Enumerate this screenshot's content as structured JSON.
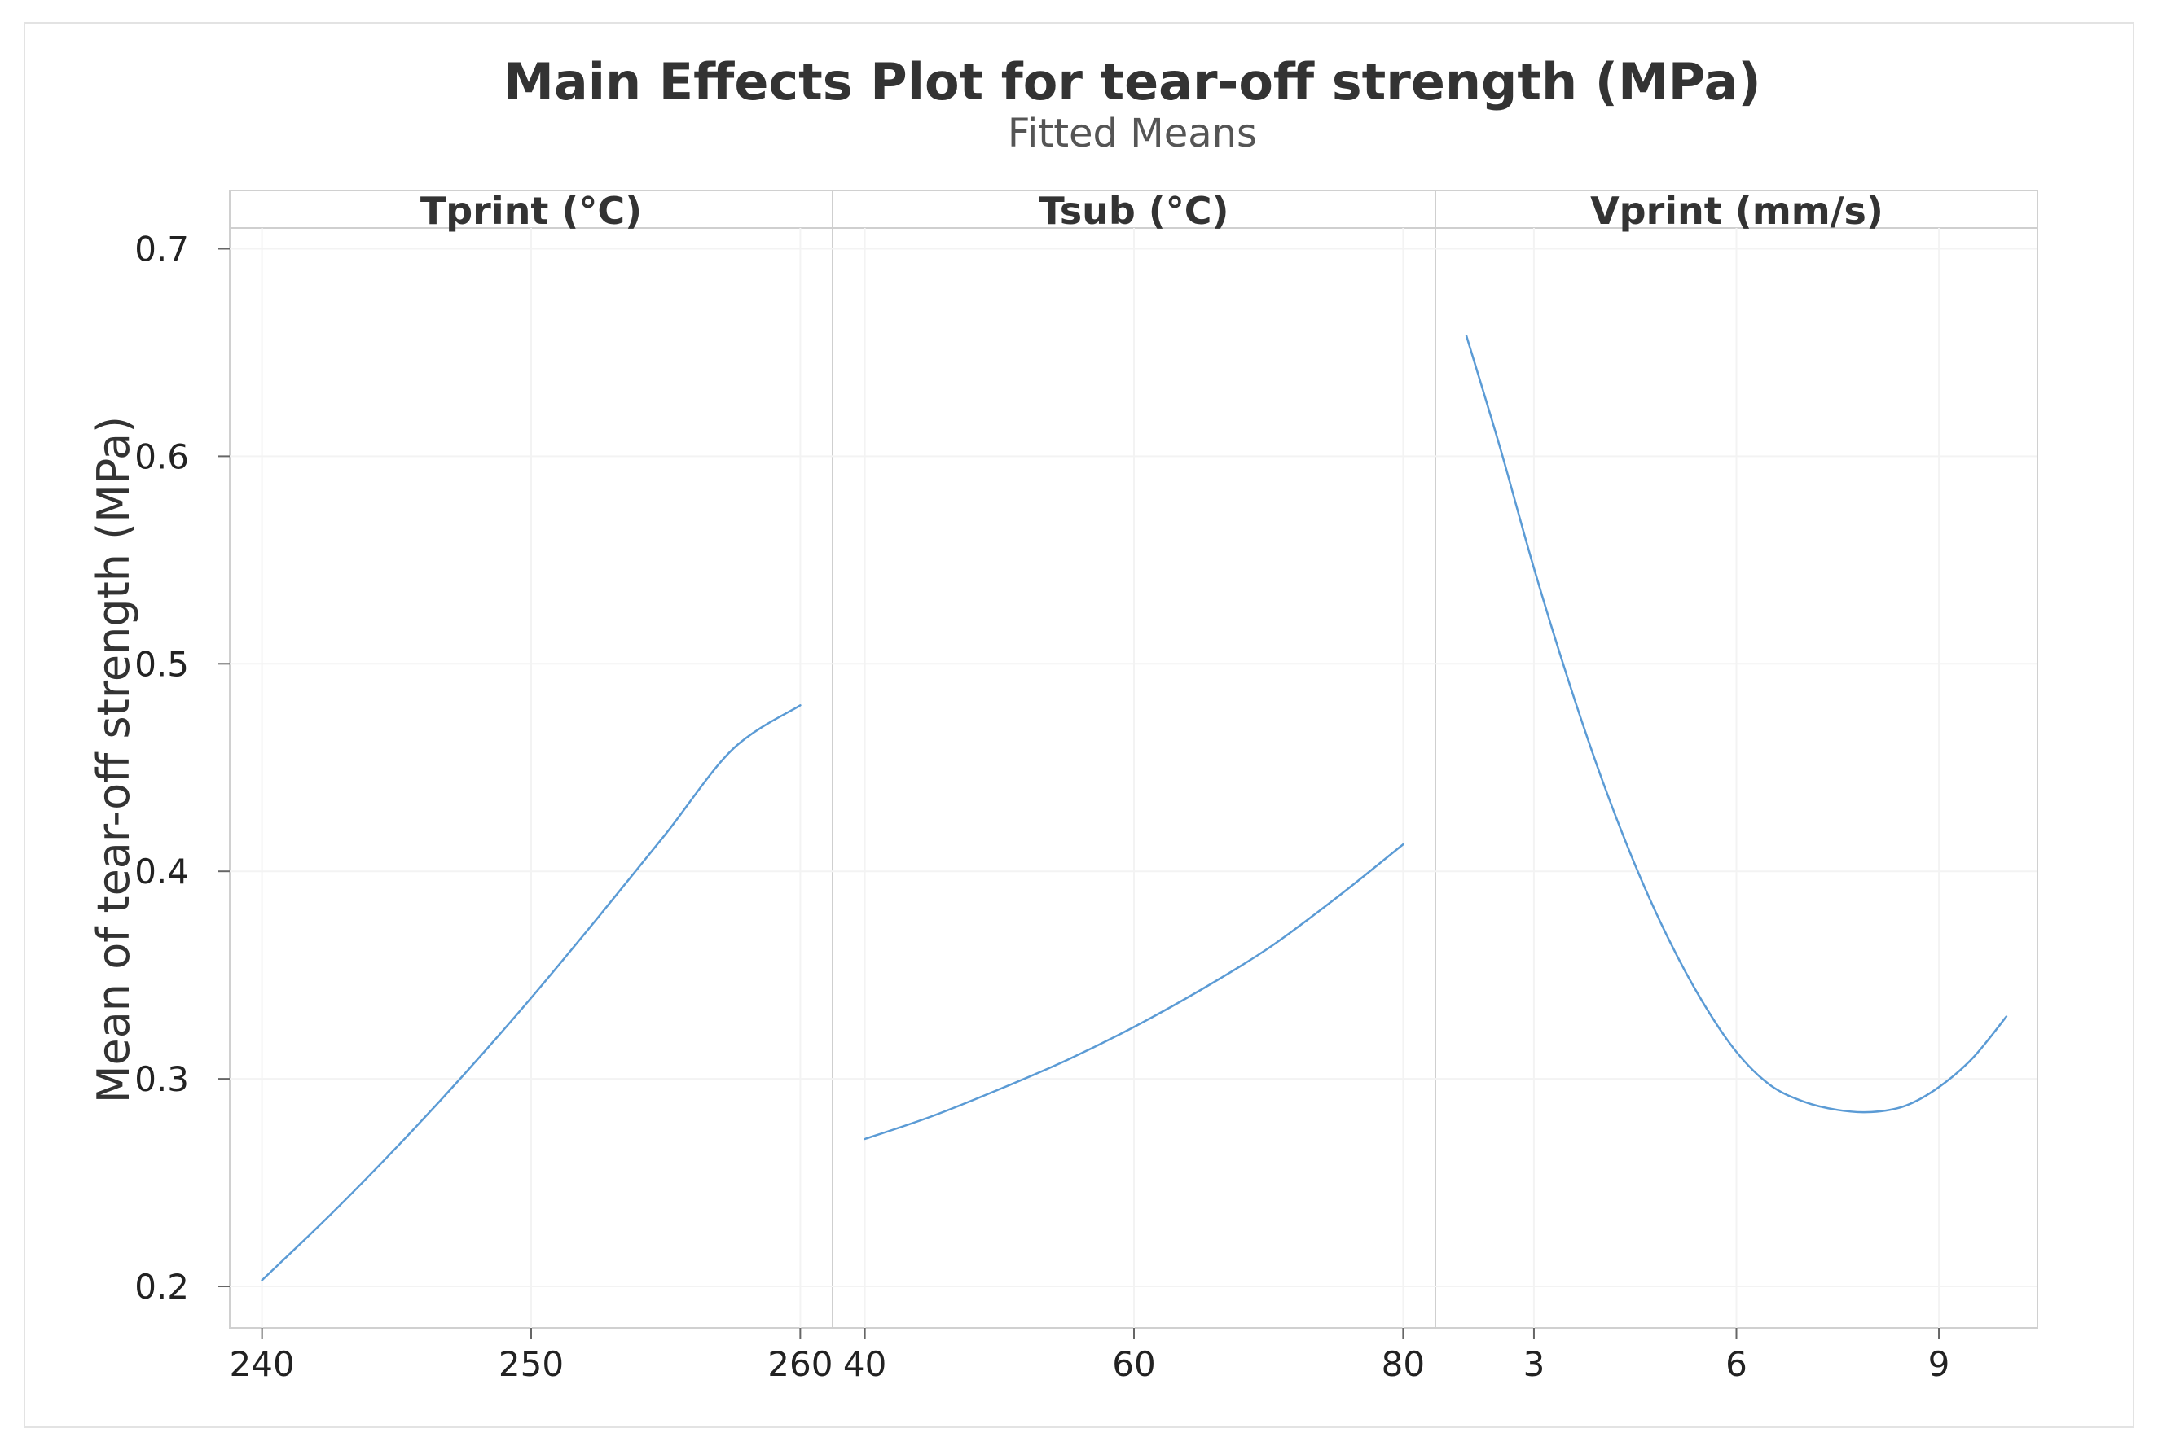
{
  "chart_data": {
    "type": "line",
    "title": "Main Effects Plot for tear-off strength (MPa)",
    "subtitle": "Fitted Means",
    "ylabel": "Mean of tear-off strength (MPa)",
    "ylim": [
      0.18,
      0.71
    ],
    "yticks": [
      0.2,
      0.3,
      0.4,
      0.5,
      0.6,
      0.7
    ],
    "ytick_labels": [
      "0.2",
      "0.3",
      "0.4",
      "0.5",
      "0.6",
      "0.7"
    ],
    "line_color": "#5b9bd5",
    "grid": true,
    "legend": "none",
    "panels": [
      {
        "label": "Tprint (°C)",
        "xlim": [
          238.8,
          261.2
        ],
        "xticks": [
          240,
          250,
          260
        ],
        "xtick_labels": [
          "240",
          "250",
          "260"
        ],
        "series": {
          "name": "Tprint (°C)",
          "x": [
            240,
            242.5,
            245,
            247.5,
            250,
            252.5,
            255,
            257.5,
            260
          ],
          "y": [
            0.203,
            0.234,
            0.267,
            0.302,
            0.339,
            0.378,
            0.418,
            0.459,
            0.48
          ]
        }
      },
      {
        "label": "Tsub (°C)",
        "xlim": [
          37.6,
          82.4
        ],
        "xticks": [
          40,
          60,
          80
        ],
        "xtick_labels": [
          "40",
          "60",
          "80"
        ],
        "series": {
          "name": "Tsub (°C)",
          "x": [
            40,
            45,
            50,
            55,
            60,
            65,
            70,
            75,
            80
          ],
          "y": [
            0.271,
            0.282,
            0.295,
            0.309,
            0.325,
            0.343,
            0.363,
            0.387,
            0.413
          ]
        }
      },
      {
        "label": "Vprint (mm/s)",
        "xlim": [
          1.54,
          10.46
        ],
        "xticks": [
          3,
          6,
          9
        ],
        "xtick_labels": [
          "3",
          "6",
          "9"
        ],
        "series": {
          "name": "Vprint (mm/s)",
          "x": [
            2,
            2.5,
            3,
            3.5,
            4,
            4.5,
            5,
            5.5,
            6,
            6.5,
            7,
            7.5,
            8,
            8.5,
            9,
            9.5,
            10
          ],
          "y": [
            0.658,
            0.604,
            0.546,
            0.493,
            0.445,
            0.403,
            0.367,
            0.337,
            0.313,
            0.297,
            0.289,
            0.285,
            0.284,
            0.287,
            0.296,
            0.31,
            0.33
          ]
        }
      }
    ]
  }
}
